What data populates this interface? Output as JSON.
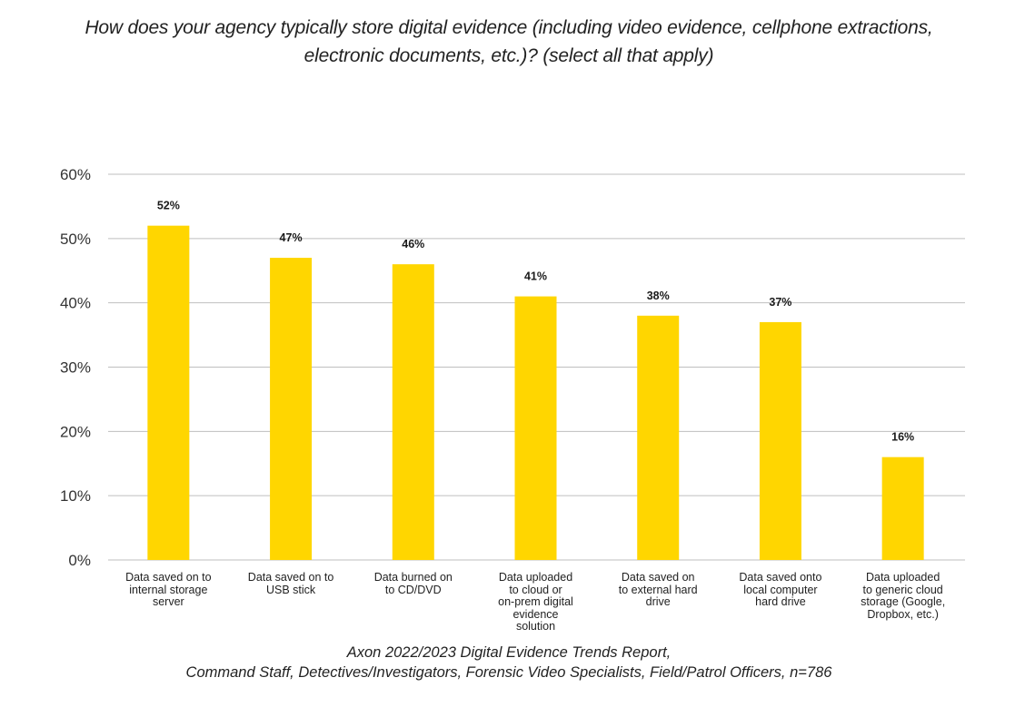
{
  "chart_data": {
    "type": "bar",
    "title": "How does your agency typically store digital evidence (including video evidence, cellphone extractions, electronic documents, etc.)? (select all that apply)",
    "xlabel": "",
    "ylabel": "",
    "ylim": [
      0,
      60
    ],
    "yticks": [
      0,
      10,
      20,
      30,
      40,
      50,
      60
    ],
    "ytick_labels": [
      "0%",
      "10%",
      "20%",
      "30%",
      "40%",
      "50%",
      "60%"
    ],
    "grid": true,
    "legend": "none",
    "bar_color": "#FFD600",
    "categories": [
      "Data saved on to\ninternal storage\nserver",
      "Data saved on to\nUSB stick",
      "Data burned on\nto CD/DVD",
      "Data uploaded\nto cloud or\non-prem digital\nevidence\nsolution",
      "Data saved on\nto external hard\ndrive",
      "Data saved onto\nlocal computer\nhard drive",
      "Data uploaded\nto generic cloud\nstorage (Google,\nDropbox, etc.)"
    ],
    "values": [
      52,
      47,
      46,
      41,
      38,
      37,
      16
    ],
    "data_labels": [
      "52%",
      "47%",
      "46%",
      "41%",
      "38%",
      "37%",
      "16%"
    ],
    "source": "Axon 2022/2023 Digital Evidence Trends Report,\nCommand Staff, Detectives/Investigators, Forensic Video Specialists, Field/Patrol Officers, n=786"
  }
}
